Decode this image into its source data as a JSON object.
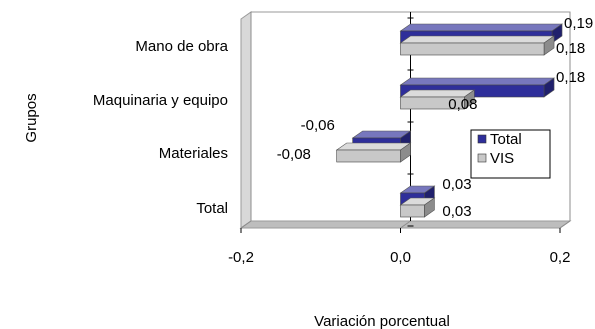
{
  "chart_data": {
    "type": "bar",
    "orientation": "horizontal",
    "style": "3d-clustered",
    "title": "",
    "xlabel": "Variación porcentual",
    "ylabel": "Grupos",
    "categories": [
      "Mano de obra",
      "Maquinaria y equipo",
      "Materiales",
      "Total"
    ],
    "series": [
      {
        "name": "Total",
        "color": "#2E2E9A",
        "values": [
          0.19,
          0.18,
          -0.06,
          0.03
        ],
        "value_labels": [
          "0,19",
          "0,18",
          "-0,06",
          "0,03"
        ]
      },
      {
        "name": "VIS",
        "color": "#C8C8C8",
        "values": [
          0.18,
          0.08,
          -0.08,
          0.03
        ],
        "value_labels": [
          "0,18",
          "0,08",
          "-0,08",
          "0,03"
        ]
      }
    ],
    "xlim": [
      -0.2,
      0.2
    ],
    "xticks": [
      -0.2,
      0.0,
      0.2
    ],
    "xtick_labels": [
      "-0,2",
      "0,0",
      "0,2"
    ],
    "grid": "vertical",
    "legend_position": "right"
  }
}
